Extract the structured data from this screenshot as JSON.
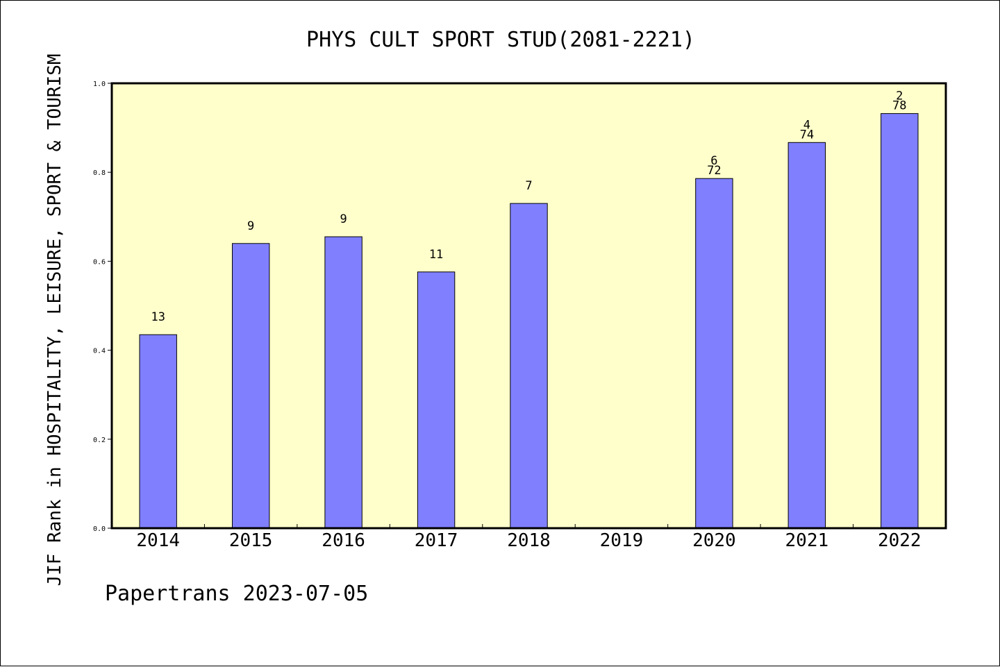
{
  "chart_data": {
    "type": "bar",
    "title": "PHYS CULT SPORT STUD(2081-2221)",
    "xlabel": "",
    "ylabel": "JIF Rank in HOSPITALITY, LEISURE, SPORT & TOURISM",
    "categories": [
      "2014",
      "2015",
      "2016",
      "2017",
      "2018",
      "2019",
      "2020",
      "2021",
      "2022"
    ],
    "values": [
      0.435,
      0.64,
      0.655,
      0.576,
      0.73,
      null,
      0.786,
      0.867,
      0.932
    ],
    "rank_labels": [
      "13",
      "9",
      "9",
      "11",
      "7",
      "",
      "6",
      "4",
      "2"
    ],
    "total_labels": [
      "",
      "",
      "",
      "",
      "",
      "",
      "72",
      "74",
      "78"
    ],
    "ylim": [
      0,
      1.0
    ],
    "yticks": [
      "0.0",
      "0.2",
      "0.4",
      "0.6",
      "0.8",
      "1.0"
    ],
    "grid": false,
    "legend": "none",
    "colors": {
      "bar": "#8080ff",
      "plot_background": "#ffffcc",
      "axis": "#000000"
    }
  },
  "footer": {
    "source": "Papertrans 2023-07-05"
  }
}
